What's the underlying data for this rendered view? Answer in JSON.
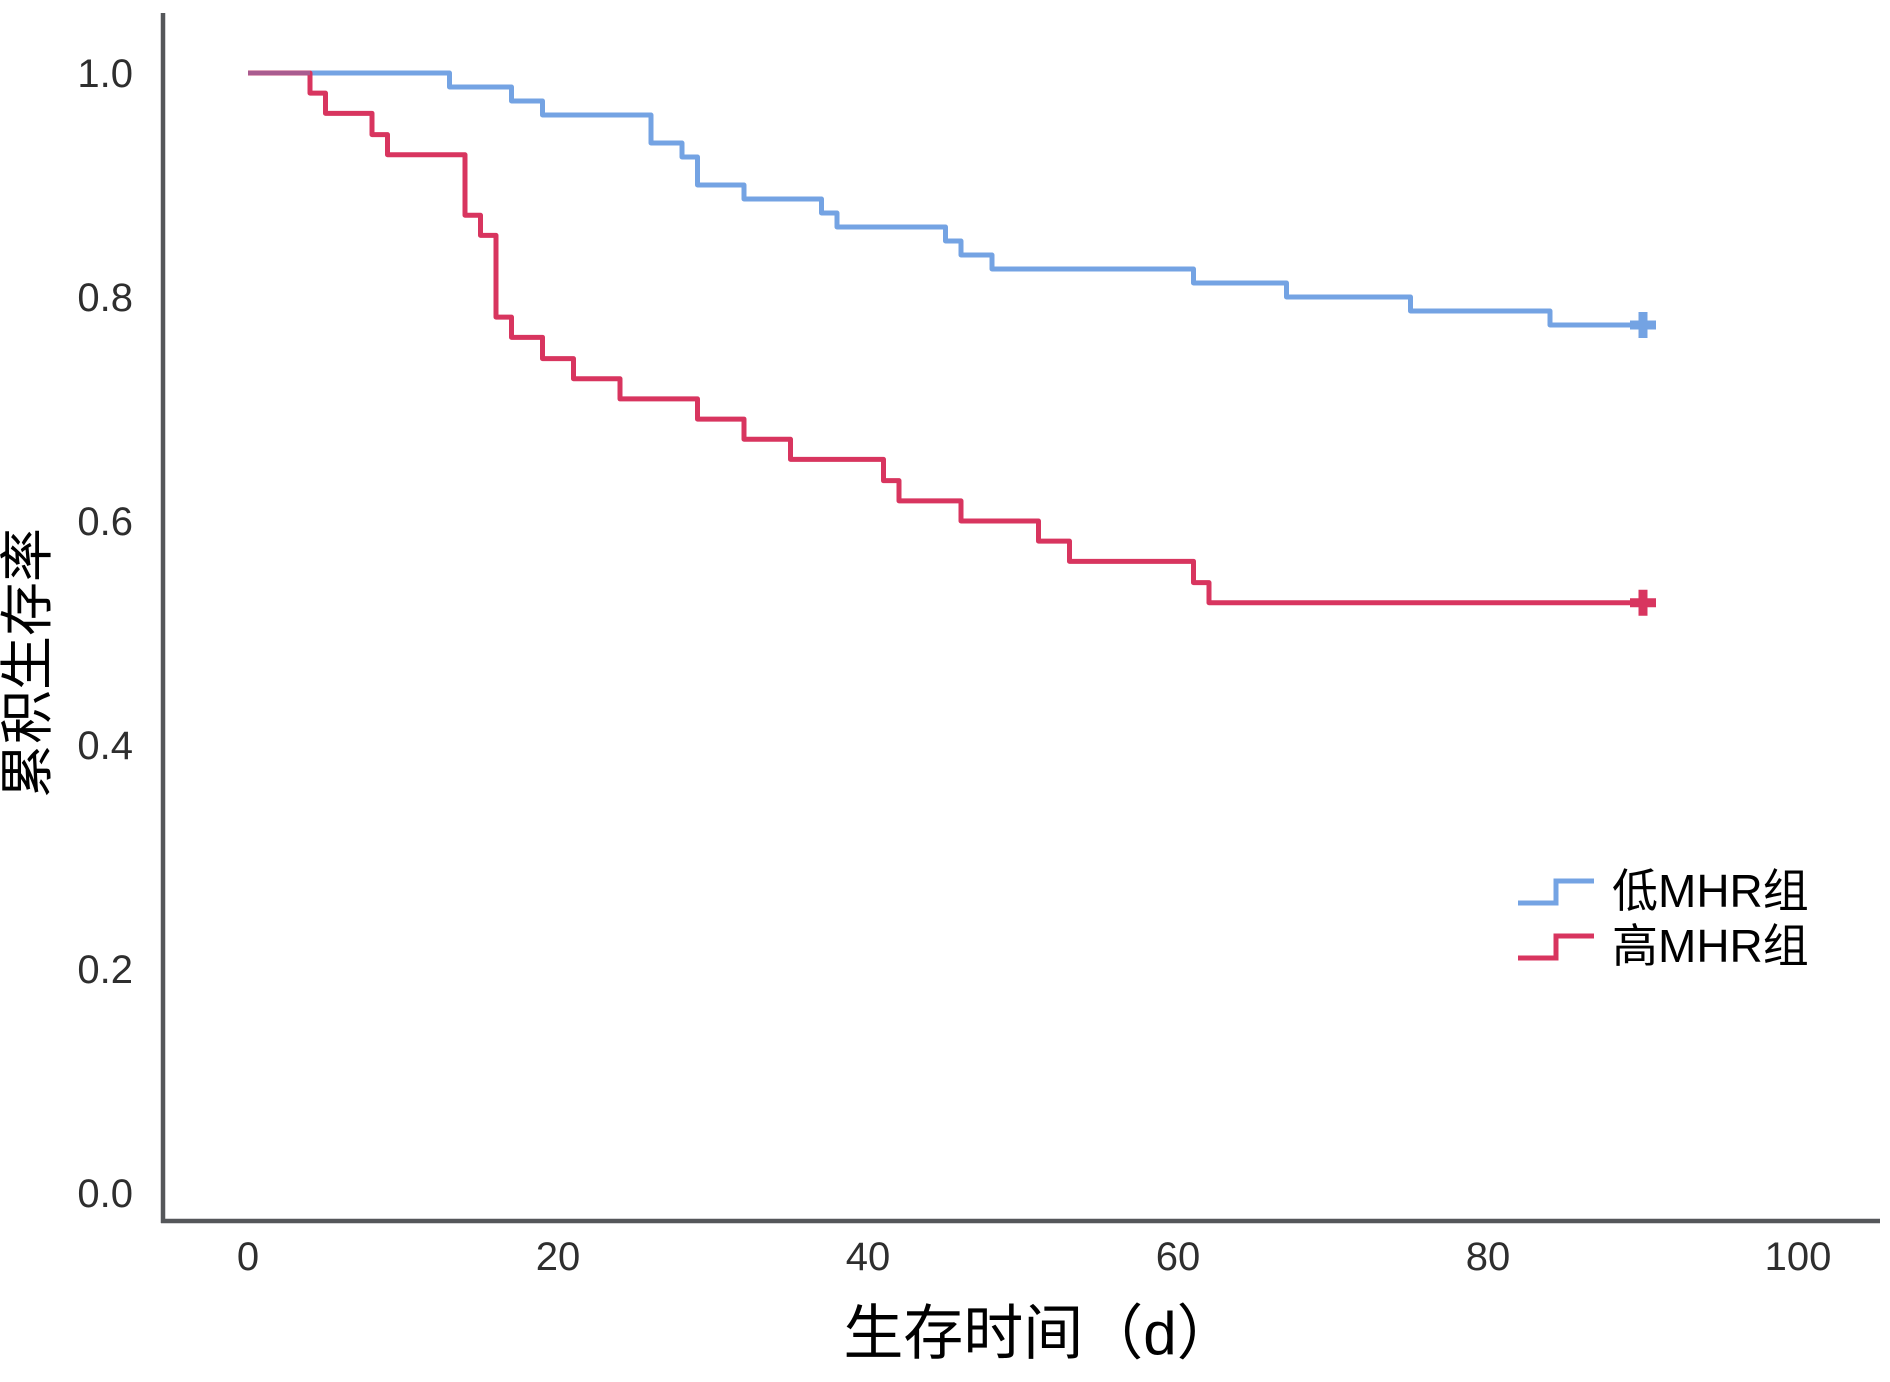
{
  "figure": {
    "background": "#ffffff"
  },
  "axes": {
    "x": {
      "title": "生存时间（d）",
      "ticks": [
        "0",
        "20",
        "40",
        "60",
        "80",
        "100"
      ]
    },
    "y": {
      "title": "累积生存率",
      "ticks": [
        "1.0",
        "0.8",
        "0.6",
        "0.4",
        "0.2",
        "0.0"
      ]
    }
  },
  "legend": {
    "entries": [
      {
        "label": "低MHR组",
        "color": "#74A3E3",
        "symbol": "step-line"
      },
      {
        "label": "高MHR组",
        "color": "#D8355F",
        "symbol": "step-line"
      }
    ]
  },
  "colors": {
    "axis": "#55575A",
    "tick_text": "#2E2E2E",
    "title_text": "#000000",
    "overlap_segment": "#A95C90",
    "low_mhr_blue": "#74A3E3",
    "high_mhr_red": "#D8355F"
  },
  "chart_data": {
    "type": "line",
    "subtype": "kaplan-meier-step",
    "title": "",
    "xlabel": "生存时间（d）",
    "ylabel": "累积生存率",
    "x_ticks": [
      0,
      20,
      40,
      60,
      80,
      100
    ],
    "y_ticks": [
      1.0,
      0.8,
      0.6,
      0.4,
      0.2,
      0.0
    ],
    "xlim": [
      -5.5,
      105.5
    ],
    "ylim": [
      -0.025,
      1.054
    ],
    "grid": false,
    "legend_position": "right-middle",
    "series": [
      {
        "name": "低MHR组",
        "color": "#74A3E3",
        "censored_at": 90,
        "final_value": 0.775,
        "steps": [
          [
            0,
            1.0
          ],
          [
            13,
            0.9875
          ],
          [
            17,
            0.975
          ],
          [
            19,
            0.9625
          ],
          [
            26,
            0.9375
          ],
          [
            28,
            0.925
          ],
          [
            29,
            0.9
          ],
          [
            32,
            0.8875
          ],
          [
            37,
            0.875
          ],
          [
            38,
            0.8625
          ],
          [
            45,
            0.85
          ],
          [
            46,
            0.8375
          ],
          [
            48,
            0.825
          ],
          [
            61,
            0.8125
          ],
          [
            67,
            0.8
          ],
          [
            75,
            0.7875
          ],
          [
            84,
            0.775
          ]
        ]
      },
      {
        "name": "高MHR组",
        "color": "#D8355F",
        "censored_at": 90,
        "final_value": 0.527,
        "steps": [
          [
            0,
            1.0
          ],
          [
            4,
            0.982
          ],
          [
            5,
            0.964
          ],
          [
            8,
            0.945
          ],
          [
            9,
            0.927
          ],
          [
            14,
            0.873
          ],
          [
            15,
            0.855
          ],
          [
            16,
            0.782
          ],
          [
            17,
            0.764
          ],
          [
            19,
            0.745
          ],
          [
            21,
            0.727
          ],
          [
            24,
            0.709
          ],
          [
            29,
            0.691
          ],
          [
            32,
            0.673
          ],
          [
            35,
            0.655
          ],
          [
            41,
            0.636
          ],
          [
            42,
            0.618
          ],
          [
            46,
            0.6
          ],
          [
            51,
            0.582
          ],
          [
            53,
            0.564
          ],
          [
            61,
            0.545
          ],
          [
            62,
            0.527
          ]
        ]
      }
    ]
  }
}
